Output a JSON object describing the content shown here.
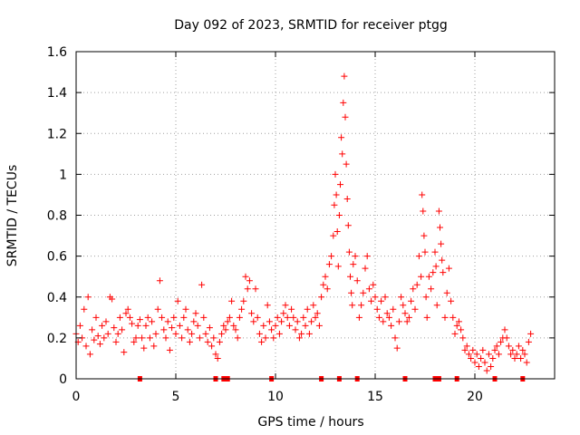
{
  "chart_data": {
    "type": "scatter",
    "title": "Day 092 of 2023, SRMTID for receiver ptgg",
    "xlabel": "GPS time / hours",
    "ylabel": "SRMTID / TECUs",
    "xlim": [
      0,
      24
    ],
    "ylim": [
      0,
      1.6
    ],
    "x_ticks": [
      0,
      5,
      10,
      15,
      20
    ],
    "x_tick_labels": [
      "0",
      "5",
      "10",
      "15",
      "20"
    ],
    "y_ticks": [
      0,
      0.2,
      0.4,
      0.6,
      0.8,
      1.0,
      1.2,
      1.4,
      1.6
    ],
    "y_tick_labels": [
      "0",
      "0.2",
      "0.4",
      "0.6",
      "0.8",
      "1",
      "1.2",
      "1.4",
      "1.6"
    ],
    "grid": true,
    "marker": "plus",
    "color": "#ff0000",
    "baseline_markers_x": [
      3.2,
      7.0,
      7.4,
      7.6,
      9.8,
      12.3,
      13.2,
      14.1,
      16.5,
      18.0,
      18.2,
      19.1,
      21.0,
      22.4
    ],
    "points": [
      [
        0.0,
        0.22
      ],
      [
        0.1,
        0.18
      ],
      [
        0.2,
        0.26
      ],
      [
        0.3,
        0.2
      ],
      [
        0.4,
        0.34
      ],
      [
        0.5,
        0.16
      ],
      [
        0.6,
        0.4
      ],
      [
        0.7,
        0.12
      ],
      [
        0.8,
        0.24
      ],
      [
        0.9,
        0.19
      ],
      [
        1.0,
        0.3
      ],
      [
        1.1,
        0.21
      ],
      [
        1.2,
        0.17
      ],
      [
        1.3,
        0.26
      ],
      [
        1.4,
        0.2
      ],
      [
        1.5,
        0.28
      ],
      [
        1.6,
        0.22
      ],
      [
        1.7,
        0.4
      ],
      [
        1.8,
        0.39
      ],
      [
        1.9,
        0.25
      ],
      [
        2.0,
        0.18
      ],
      [
        2.1,
        0.22
      ],
      [
        2.2,
        0.3
      ],
      [
        2.3,
        0.24
      ],
      [
        2.4,
        0.13
      ],
      [
        2.5,
        0.32
      ],
      [
        2.6,
        0.34
      ],
      [
        2.7,
        0.3
      ],
      [
        2.8,
        0.27
      ],
      [
        2.9,
        0.18
      ],
      [
        3.0,
        0.2
      ],
      [
        3.1,
        0.26
      ],
      [
        3.2,
        0.29
      ],
      [
        3.3,
        0.2
      ],
      [
        3.4,
        0.15
      ],
      [
        3.5,
        0.26
      ],
      [
        3.6,
        0.3
      ],
      [
        3.7,
        0.2
      ],
      [
        3.8,
        0.28
      ],
      [
        3.9,
        0.16
      ],
      [
        4.0,
        0.22
      ],
      [
        4.1,
        0.34
      ],
      [
        4.2,
        0.48
      ],
      [
        4.3,
        0.3
      ],
      [
        4.4,
        0.24
      ],
      [
        4.5,
        0.2
      ],
      [
        4.6,
        0.28
      ],
      [
        4.7,
        0.14
      ],
      [
        4.8,
        0.25
      ],
      [
        4.9,
        0.3
      ],
      [
        5.0,
        0.22
      ],
      [
        5.1,
        0.38
      ],
      [
        5.2,
        0.26
      ],
      [
        5.3,
        0.2
      ],
      [
        5.4,
        0.3
      ],
      [
        5.5,
        0.34
      ],
      [
        5.6,
        0.24
      ],
      [
        5.7,
        0.18
      ],
      [
        5.8,
        0.22
      ],
      [
        5.9,
        0.28
      ],
      [
        6.0,
        0.32
      ],
      [
        6.1,
        0.26
      ],
      [
        6.2,
        0.2
      ],
      [
        6.3,
        0.46
      ],
      [
        6.4,
        0.3
      ],
      [
        6.5,
        0.22
      ],
      [
        6.6,
        0.18
      ],
      [
        6.7,
        0.25
      ],
      [
        6.8,
        0.16
      ],
      [
        6.9,
        0.2
      ],
      [
        7.0,
        0.12
      ],
      [
        7.1,
        0.1
      ],
      [
        7.2,
        0.18
      ],
      [
        7.3,
        0.22
      ],
      [
        7.4,
        0.26
      ],
      [
        7.5,
        0.24
      ],
      [
        7.6,
        0.28
      ],
      [
        7.7,
        0.3
      ],
      [
        7.8,
        0.38
      ],
      [
        7.9,
        0.26
      ],
      [
        8.0,
        0.24
      ],
      [
        8.1,
        0.2
      ],
      [
        8.2,
        0.3
      ],
      [
        8.3,
        0.34
      ],
      [
        8.4,
        0.38
      ],
      [
        8.5,
        0.5
      ],
      [
        8.6,
        0.44
      ],
      [
        8.7,
        0.48
      ],
      [
        8.8,
        0.32
      ],
      [
        8.9,
        0.28
      ],
      [
        9.0,
        0.44
      ],
      [
        9.1,
        0.3
      ],
      [
        9.2,
        0.22
      ],
      [
        9.3,
        0.18
      ],
      [
        9.4,
        0.26
      ],
      [
        9.5,
        0.2
      ],
      [
        9.6,
        0.36
      ],
      [
        9.7,
        0.28
      ],
      [
        9.8,
        0.24
      ],
      [
        9.9,
        0.2
      ],
      [
        10.0,
        0.26
      ],
      [
        10.1,
        0.3
      ],
      [
        10.2,
        0.22
      ],
      [
        10.3,
        0.28
      ],
      [
        10.4,
        0.32
      ],
      [
        10.5,
        0.36
      ],
      [
        10.6,
        0.3
      ],
      [
        10.7,
        0.26
      ],
      [
        10.8,
        0.34
      ],
      [
        10.9,
        0.3
      ],
      [
        11.0,
        0.24
      ],
      [
        11.1,
        0.28
      ],
      [
        11.2,
        0.2
      ],
      [
        11.3,
        0.22
      ],
      [
        11.4,
        0.3
      ],
      [
        11.5,
        0.26
      ],
      [
        11.6,
        0.34
      ],
      [
        11.7,
        0.22
      ],
      [
        11.8,
        0.28
      ],
      [
        11.9,
        0.36
      ],
      [
        12.0,
        0.3
      ],
      [
        12.1,
        0.32
      ],
      [
        12.2,
        0.26
      ],
      [
        12.3,
        0.4
      ],
      [
        12.4,
        0.46
      ],
      [
        12.5,
        0.5
      ],
      [
        12.6,
        0.44
      ],
      [
        12.7,
        0.56
      ],
      [
        12.8,
        0.6
      ],
      [
        12.9,
        0.7
      ],
      [
        12.95,
        0.85
      ],
      [
        13.0,
        1.0
      ],
      [
        13.05,
        0.9
      ],
      [
        13.1,
        0.72
      ],
      [
        13.15,
        0.55
      ],
      [
        13.2,
        0.8
      ],
      [
        13.25,
        0.95
      ],
      [
        13.3,
        1.18
      ],
      [
        13.35,
        1.1
      ],
      [
        13.4,
        1.35
      ],
      [
        13.45,
        1.48
      ],
      [
        13.5,
        1.28
      ],
      [
        13.55,
        1.05
      ],
      [
        13.6,
        0.88
      ],
      [
        13.65,
        0.75
      ],
      [
        13.7,
        0.62
      ],
      [
        13.75,
        0.5
      ],
      [
        13.8,
        0.42
      ],
      [
        13.85,
        0.36
      ],
      [
        13.9,
        0.56
      ],
      [
        14.0,
        0.6
      ],
      [
        14.1,
        0.48
      ],
      [
        14.2,
        0.3
      ],
      [
        14.3,
        0.36
      ],
      [
        14.4,
        0.42
      ],
      [
        14.5,
        0.54
      ],
      [
        14.6,
        0.6
      ],
      [
        14.7,
        0.44
      ],
      [
        14.8,
        0.38
      ],
      [
        14.9,
        0.46
      ],
      [
        15.0,
        0.4
      ],
      [
        15.1,
        0.34
      ],
      [
        15.2,
        0.3
      ],
      [
        15.3,
        0.38
      ],
      [
        15.4,
        0.28
      ],
      [
        15.5,
        0.4
      ],
      [
        15.6,
        0.32
      ],
      [
        15.7,
        0.3
      ],
      [
        15.8,
        0.26
      ],
      [
        15.9,
        0.34
      ],
      [
        16.0,
        0.2
      ],
      [
        16.1,
        0.15
      ],
      [
        16.2,
        0.28
      ],
      [
        16.3,
        0.4
      ],
      [
        16.4,
        0.36
      ],
      [
        16.5,
        0.32
      ],
      [
        16.6,
        0.28
      ],
      [
        16.7,
        0.3
      ],
      [
        16.8,
        0.38
      ],
      [
        16.9,
        0.44
      ],
      [
        17.0,
        0.34
      ],
      [
        17.1,
        0.46
      ],
      [
        17.2,
        0.6
      ],
      [
        17.3,
        0.5
      ],
      [
        17.35,
        0.9
      ],
      [
        17.4,
        0.82
      ],
      [
        17.45,
        0.7
      ],
      [
        17.5,
        0.62
      ],
      [
        17.55,
        0.4
      ],
      [
        17.6,
        0.3
      ],
      [
        17.7,
        0.5
      ],
      [
        17.8,
        0.44
      ],
      [
        17.9,
        0.52
      ],
      [
        18.0,
        0.62
      ],
      [
        18.05,
        0.55
      ],
      [
        18.1,
        0.36
      ],
      [
        18.2,
        0.82
      ],
      [
        18.25,
        0.74
      ],
      [
        18.3,
        0.66
      ],
      [
        18.35,
        0.58
      ],
      [
        18.4,
        0.52
      ],
      [
        18.5,
        0.3
      ],
      [
        18.6,
        0.42
      ],
      [
        18.7,
        0.54
      ],
      [
        18.8,
        0.38
      ],
      [
        18.9,
        0.3
      ],
      [
        19.0,
        0.22
      ],
      [
        19.1,
        0.26
      ],
      [
        19.2,
        0.28
      ],
      [
        19.3,
        0.24
      ],
      [
        19.4,
        0.2
      ],
      [
        19.5,
        0.14
      ],
      [
        19.6,
        0.16
      ],
      [
        19.7,
        0.12
      ],
      [
        19.8,
        0.1
      ],
      [
        19.9,
        0.14
      ],
      [
        20.0,
        0.08
      ],
      [
        20.1,
        0.12
      ],
      [
        20.2,
        0.06
      ],
      [
        20.3,
        0.1
      ],
      [
        20.4,
        0.14
      ],
      [
        20.5,
        0.08
      ],
      [
        20.6,
        0.04
      ],
      [
        20.7,
        0.12
      ],
      [
        20.8,
        0.06
      ],
      [
        20.9,
        0.1
      ],
      [
        21.0,
        0.14
      ],
      [
        21.1,
        0.16
      ],
      [
        21.2,
        0.12
      ],
      [
        21.3,
        0.18
      ],
      [
        21.4,
        0.2
      ],
      [
        21.5,
        0.24
      ],
      [
        21.6,
        0.2
      ],
      [
        21.7,
        0.16
      ],
      [
        21.8,
        0.12
      ],
      [
        21.9,
        0.14
      ],
      [
        22.0,
        0.1
      ],
      [
        22.1,
        0.12
      ],
      [
        22.2,
        0.16
      ],
      [
        22.3,
        0.1
      ],
      [
        22.4,
        0.14
      ],
      [
        22.5,
        0.12
      ],
      [
        22.6,
        0.08
      ],
      [
        22.7,
        0.18
      ],
      [
        22.8,
        0.22
      ]
    ]
  }
}
